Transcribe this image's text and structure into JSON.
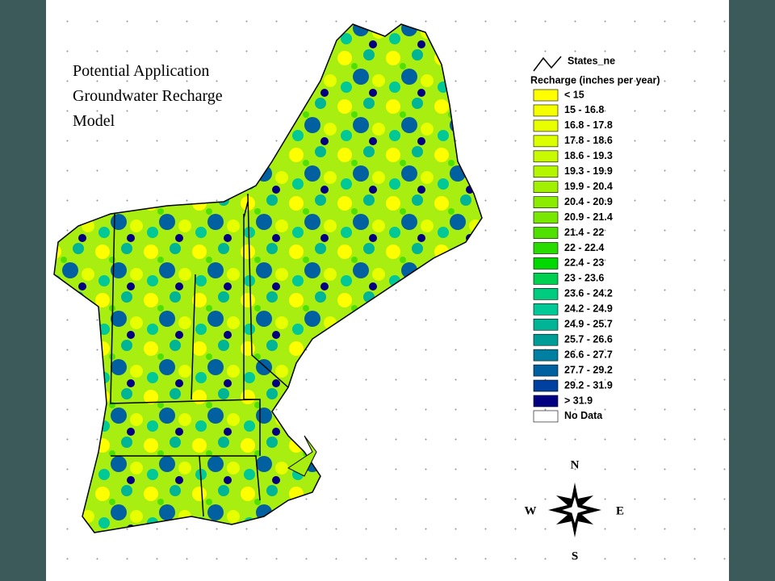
{
  "title_lines": [
    "Potential Application",
    "Groundwater Recharge",
    "Model"
  ],
  "legend": {
    "layer": "States_ne",
    "heading": "Recharge (inches per year)",
    "items": [
      {
        "label": "< 15",
        "color": "#ffff00"
      },
      {
        "label": "15 - 16.8",
        "color": "#f4ff00"
      },
      {
        "label": "16.8 - 17.8",
        "color": "#e8ff00"
      },
      {
        "label": "17.8 - 18.6",
        "color": "#dcff00"
      },
      {
        "label": "18.6 - 19.3",
        "color": "#c8fa00"
      },
      {
        "label": "19.3 - 19.9",
        "color": "#b4f500"
      },
      {
        "label": "19.9 - 20.4",
        "color": "#a0f000"
      },
      {
        "label": "20.4 - 20.9",
        "color": "#8cec00"
      },
      {
        "label": "20.9 - 21.4",
        "color": "#78e800"
      },
      {
        "label": "21.4 - 22",
        "color": "#50e000"
      },
      {
        "label": "22 - 22.4",
        "color": "#28dc00"
      },
      {
        "label": "22.4 - 23",
        "color": "#00d800"
      },
      {
        "label": "23 - 23.6",
        "color": "#00d050"
      },
      {
        "label": "23.6 - 24.2",
        "color": "#00cc80"
      },
      {
        "label": "24.2 - 24.9",
        "color": "#00c896"
      },
      {
        "label": "24.9 - 25.7",
        "color": "#00b496"
      },
      {
        "label": "25.7 - 26.6",
        "color": "#009c96"
      },
      {
        "label": "26.6 - 27.7",
        "color": "#0080a0"
      },
      {
        "label": "27.7 - 29.2",
        "color": "#0060a0"
      },
      {
        "label": "29.2 - 31.9",
        "color": "#0040a0"
      },
      {
        "label": "> 31.9",
        "color": "#000080"
      },
      {
        "label": "No Data",
        "color": "#ffffff"
      }
    ]
  },
  "compass": {
    "north": "N",
    "south": "S",
    "east": "E",
    "west": "W"
  }
}
